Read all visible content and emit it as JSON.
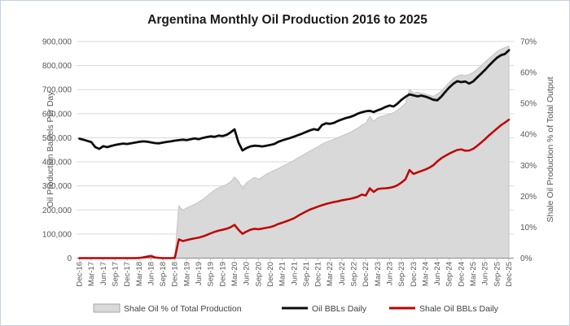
{
  "page": {
    "border_color": "#c2d1e2",
    "background": "#ffffff"
  },
  "chart_data": {
    "type": "line",
    "title": "Argentina Monthly Oil Production 2016 to 2025",
    "x_start": "Dec-16",
    "x_step_months": 1,
    "x_tick_labels": [
      "Dec-16",
      "Mar-17",
      "Jun-17",
      "Sep-17",
      "Dec-17",
      "Mar-18",
      "Jun-18",
      "Sep-18",
      "Dec-18",
      "Mar-19",
      "Jun-19",
      "Sep-19",
      "Dec-19",
      "Mar-20",
      "Jun-20",
      "Sep-20",
      "Dec-20",
      "Mar-21",
      "Jun-21",
      "Sep-21",
      "Dec-21",
      "Mar-22",
      "Jun-22",
      "Sep-22",
      "Dec-22",
      "Mar-23",
      "Jun-23",
      "Sep-23",
      "Dec-23",
      "Mar-24",
      "Jun-24",
      "Sep-24",
      "Dec-24",
      "Mar-25",
      "Jun-25",
      "Sep-25",
      "Dec-25"
    ],
    "left_axis": {
      "label": "Oil Production Barrels Per Day",
      "min": 0,
      "max": 900000,
      "tick_step": 100000,
      "tick_labels": [
        "0",
        "100,000",
        "200,000",
        "300,000",
        "400,000",
        "500,000",
        "600,000",
        "700,000",
        "800,000",
        "900,000"
      ]
    },
    "right_axis": {
      "label": "Shale Oil Production % of Total Output",
      "min": 0,
      "max": 70,
      "tick_step": 10,
      "tick_labels": [
        "0%",
        "10%",
        "20%",
        "30%",
        "40%",
        "50%",
        "60%",
        "70%"
      ]
    },
    "grid": true,
    "legend_position": "bottom",
    "series": [
      {
        "name": "Shale Oil % of Total Production",
        "type": "area",
        "axis": "right",
        "fill_color": "#d9d9d9",
        "edge_color": "#c2c2c2",
        "values": [
          0,
          0,
          0,
          0,
          0,
          0,
          0,
          0,
          0,
          0,
          0,
          0,
          0,
          0,
          0,
          0.1,
          0.4,
          0.8,
          1.2,
          0.5,
          0.1,
          0,
          0,
          0,
          0.2,
          16.9,
          15.5,
          16.2,
          16.8,
          17.4,
          18.1,
          18.9,
          19.9,
          21.0,
          22.0,
          22.7,
          23.2,
          23.8,
          24.6,
          26.2,
          24.8,
          22.5,
          24.3,
          25.2,
          26.1,
          25.5,
          26.2,
          27.1,
          27.8,
          28.4,
          28.9,
          29.6,
          30.2,
          30.9,
          31.6,
          32.4,
          33.1,
          33.9,
          34.6,
          35.3,
          36.0,
          36.8,
          37.4,
          37.9,
          38.4,
          38.9,
          39.5,
          40.0,
          40.6,
          41.3,
          42.0,
          43.0,
          43.6,
          45.8,
          44.2,
          45.4,
          45.8,
          46.1,
          46.5,
          47.0,
          47.8,
          48.8,
          50.0,
          54.5,
          53.3,
          53.6,
          53.3,
          53.0,
          52.6,
          52.3,
          53.0,
          54.0,
          55.3,
          56.8,
          58.0,
          58.8,
          59.2,
          59.0,
          59.3,
          60.0,
          61.0,
          62.2,
          63.4,
          64.5,
          65.6,
          66.7,
          67.5,
          68.0,
          68.5
        ]
      },
      {
        "name": "Oil BBLs Daily",
        "type": "line",
        "axis": "left",
        "color": "#0d0d0d",
        "values": [
          496000,
          492000,
          487000,
          482000,
          461000,
          454000,
          465000,
          461000,
          466000,
          470000,
          473000,
          476000,
          474000,
          477000,
          480000,
          483000,
          485000,
          484000,
          481000,
          478000,
          477000,
          480000,
          483000,
          485000,
          488000,
          490000,
          492000,
          490000,
          494000,
          497000,
          494000,
          499000,
          503000,
          506000,
          504000,
          509000,
          507000,
          512000,
          522000,
          535000,
          480000,
          447000,
          457000,
          464000,
          467000,
          466000,
          464000,
          467000,
          470000,
          474000,
          483000,
          489000,
          494000,
          499000,
          505000,
          511000,
          517000,
          524000,
          531000,
          536000,
          532000,
          553000,
          560000,
          558000,
          562000,
          570000,
          576000,
          582000,
          586000,
          592000,
          600000,
          606000,
          610000,
          612000,
          607000,
          614000,
          620000,
          628000,
          634000,
          630000,
          642000,
          658000,
          670000,
          680000,
          676000,
          672000,
          675000,
          671000,
          665000,
          658000,
          656000,
          671000,
          691000,
          709000,
          724000,
          735000,
          731000,
          734000,
          725000,
          734000,
          750000,
          766000,
          782000,
          800000,
          817000,
          832000,
          843000,
          848000,
          864000
        ]
      },
      {
        "name": "Shale Oil BBLs Daily",
        "type": "line",
        "axis": "left",
        "color": "#c00000",
        "values": [
          0,
          0,
          0,
          0,
          0,
          0,
          0,
          0,
          0,
          0,
          0,
          0,
          0,
          0,
          0,
          1000,
          3000,
          6000,
          8000,
          3000,
          1000,
          0,
          0,
          0,
          1000,
          78000,
          71000,
          75000,
          79000,
          82000,
          85000,
          90000,
          96000,
          103000,
          109000,
          114000,
          118000,
          122000,
          128000,
          138000,
          118000,
          101000,
          110000,
          118000,
          122000,
          120000,
          123000,
          126000,
          129000,
          134000,
          142000,
          147000,
          153000,
          159000,
          166000,
          176000,
          185000,
          194000,
          202000,
          208000,
          214000,
          220000,
          225000,
          229000,
          233000,
          236000,
          240000,
          243000,
          246000,
          250000,
          255000,
          264000,
          260000,
          290000,
          275000,
          287000,
          289000,
          290000,
          292000,
          296000,
          303000,
          314000,
          328000,
          366000,
          350000,
          356000,
          362000,
          368000,
          376000,
          386000,
          402000,
          415000,
          425000,
          434000,
          442000,
          449000,
          452000,
          446000,
          447000,
          454000,
          466000,
          480000,
          494000,
          510000,
          524000,
          538000,
          552000,
          563000,
          575000
        ]
      }
    ],
    "legend": [
      {
        "label": "Shale Oil % of Total Production",
        "swatch": "area"
      },
      {
        "label": "Oil BBLs Daily",
        "swatch": "black-line"
      },
      {
        "label": "Shale Oil BBLs Daily",
        "swatch": "red-line"
      }
    ],
    "colors": {
      "gridline": "#d9d9d9",
      "axis_line": "#8c8c8c",
      "tick_text": "#555555",
      "title_text": "#1a1a1a",
      "area_fill": "#d9d9d9",
      "total_line": "#0d0d0d",
      "shale_line": "#c00000"
    }
  }
}
